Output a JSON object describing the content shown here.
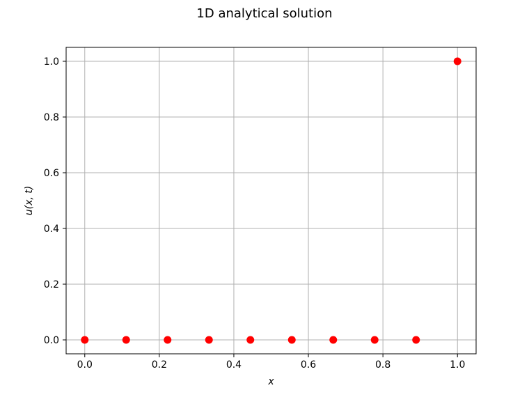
{
  "chart_data": {
    "type": "scatter",
    "title": "1D analytical solution",
    "xlabel": "x",
    "ylabel": "u(x, t)",
    "xlim": [
      -0.05,
      1.05
    ],
    "ylim": [
      -0.05,
      1.05
    ],
    "xticks": [
      0.0,
      0.2,
      0.4,
      0.6,
      0.8,
      1.0
    ],
    "yticks": [
      0.0,
      0.2,
      0.4,
      0.6,
      0.8,
      1.0
    ],
    "xtick_labels": [
      "0.0",
      "0.2",
      "0.4",
      "0.6",
      "0.8",
      "1.0"
    ],
    "ytick_labels": [
      "0.0",
      "0.2",
      "0.4",
      "0.6",
      "0.8",
      "1.0"
    ],
    "grid": true,
    "marker_color": "#ff0000",
    "grid_color": "#b0b0b0",
    "x": [
      0.0,
      0.1111,
      0.2222,
      0.3333,
      0.4444,
      0.5556,
      0.6667,
      0.7778,
      0.8889,
      1.0
    ],
    "y": [
      0.0,
      0.0,
      0.0,
      0.0,
      0.0,
      0.0,
      0.0,
      0.0,
      0.0,
      1.0
    ]
  }
}
